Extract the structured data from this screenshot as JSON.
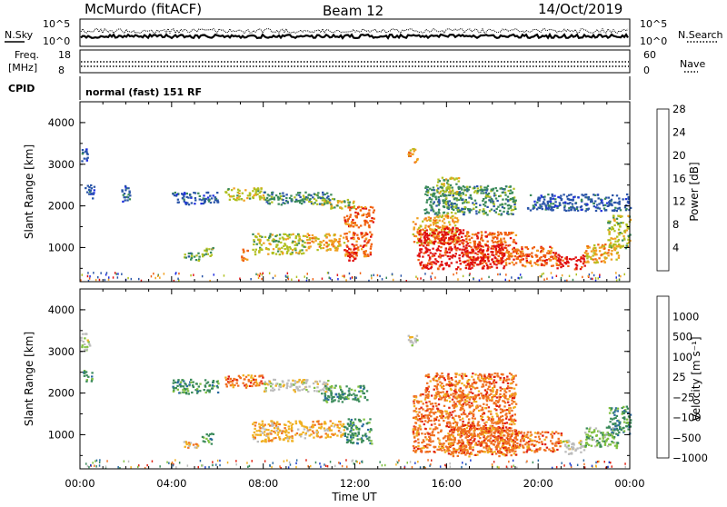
{
  "header": {
    "title_left": "McMurdo (fitACF)",
    "title_center": "Beam 12",
    "title_right": "14/Oct/2019",
    "nsky_label": "N.Sky",
    "nsearch_label": "N.Search",
    "freq_label_1": "Freq.",
    "freq_label_2": "[MHz]",
    "nave_label": "Nave",
    "cpid_label": "CPID",
    "cpid_value": "normal (fast) 151 RF",
    "nsky_ticks": [
      "10^5",
      "10^0"
    ],
    "nsearch_ticks": [
      "10^5",
      "10^0"
    ],
    "freq_ticks": [
      "18",
      "8"
    ],
    "nave_ticks": [
      "60",
      "0"
    ]
  },
  "chart_data": [
    {
      "type": "heatmap",
      "name": "power",
      "ylabel": "Slant Range [km]",
      "xlabel": "",
      "ylim": [
        180,
        4500
      ],
      "xlim": [
        0,
        24
      ],
      "y_ticks": [
        "1000",
        "2000",
        "3000",
        "4000"
      ],
      "colorbar": {
        "label": "Power [dB]",
        "ticks": [
          "4",
          "8",
          "12",
          "16",
          "20",
          "24",
          "28"
        ],
        "colors": [
          "#2030e0",
          "#2a55a8",
          "#3a8a5a",
          "#b0c020",
          "#f0a020",
          "#f06010",
          "#e01010"
        ]
      },
      "bands": [
        {
          "x": [
            0.0,
            0.3
          ],
          "y": [
            3050,
            3450
          ],
          "level": 1
        },
        {
          "x": [
            0.2,
            0.6
          ],
          "y": [
            2200,
            2550
          ],
          "level": 1
        },
        {
          "x": [
            1.8,
            2.2
          ],
          "y": [
            2100,
            2500
          ],
          "level": 1
        },
        {
          "x": [
            4.0,
            6.0
          ],
          "y": [
            2050,
            2350
          ],
          "level": 1
        },
        {
          "x": [
            4.5,
            5.2
          ],
          "y": [
            700,
            900
          ],
          "level": 2
        },
        {
          "x": [
            5.3,
            5.8
          ],
          "y": [
            800,
            1050
          ],
          "level": 3
        },
        {
          "x": [
            6.3,
            8.0
          ],
          "y": [
            2150,
            2450
          ],
          "level": 3
        },
        {
          "x": [
            8.0,
            11.0
          ],
          "y": [
            2050,
            2350
          ],
          "level": 2
        },
        {
          "x": [
            10.5,
            12.0
          ],
          "y": [
            1950,
            2200
          ],
          "level": 3
        },
        {
          "x": [
            11.5,
            12.8
          ],
          "y": [
            1500,
            2000
          ],
          "level": 5
        },
        {
          "x": [
            7.5,
            9.8
          ],
          "y": [
            850,
            1350
          ],
          "level": 3
        },
        {
          "x": [
            9.8,
            11.5
          ],
          "y": [
            950,
            1350
          ],
          "level": 4
        },
        {
          "x": [
            11.5,
            12.7
          ],
          "y": [
            800,
            1400
          ],
          "level": 5
        },
        {
          "x": [
            11.6,
            12.0
          ],
          "y": [
            700,
            1100
          ],
          "level": 6
        },
        {
          "x": [
            7.0,
            7.3
          ],
          "y": [
            700,
            1000
          ],
          "level": 5
        },
        {
          "x": [
            14.5,
            16.5
          ],
          "y": [
            1100,
            1800
          ],
          "level": 4
        },
        {
          "x": [
            14.7,
            16.8
          ],
          "y": [
            500,
            1500
          ],
          "level": 6
        },
        {
          "x": [
            16.8,
            19.0
          ],
          "y": [
            600,
            1400
          ],
          "level": 5
        },
        {
          "x": [
            16.8,
            18.5
          ],
          "y": [
            500,
            1100
          ],
          "level": 6
        },
        {
          "x": [
            19.0,
            20.8
          ],
          "y": [
            550,
            1050
          ],
          "level": 5
        },
        {
          "x": [
            20.8,
            22.0
          ],
          "y": [
            500,
            850
          ],
          "level": 6
        },
        {
          "x": [
            22.0,
            23.5
          ],
          "y": [
            650,
            1100
          ],
          "level": 4
        },
        {
          "x": [
            23.0,
            24.0
          ],
          "y": [
            1000,
            1800
          ],
          "level": 3
        },
        {
          "x": [
            15.0,
            19.0
          ],
          "y": [
            1800,
            2500
          ],
          "level": 2
        },
        {
          "x": [
            19.5,
            24.0
          ],
          "y": [
            1900,
            2300
          ],
          "level": 1
        },
        {
          "x": [
            14.3,
            14.7
          ],
          "y": [
            3050,
            3400
          ],
          "level": 4
        },
        {
          "x": [
            15.5,
            16.5
          ],
          "y": [
            2300,
            2700
          ],
          "level": 3
        }
      ]
    },
    {
      "type": "heatmap",
      "name": "velocity",
      "ylabel": "Slant Range [km]",
      "xlabel": "Time UT",
      "ylim": [
        180,
        4500
      ],
      "xlim": [
        0,
        24
      ],
      "y_ticks": [
        "1000",
        "2000",
        "3000",
        "4000"
      ],
      "x_ticks": [
        "00:00",
        "04:00",
        "08:00",
        "12:00",
        "16:00",
        "20:00",
        "00:00"
      ],
      "colorbar": {
        "label": "Velocity [m s⁻¹]",
        "ticks": [
          "1000",
          "500",
          "100",
          "25",
          "−25",
          "−100",
          "−500",
          "−1000"
        ],
        "colors": [
          "#2040d0",
          "#2a6aa0",
          "#3a8a5a",
          "#80c040",
          "#bcbcbc",
          "#f0b020",
          "#f07020",
          "#e02010"
        ]
      },
      "bands": [
        {
          "x": [
            0.0,
            0.4
          ],
          "y": [
            3050,
            3450
          ],
          "level": 4
        },
        {
          "x": [
            0.1,
            0.5
          ],
          "y": [
            2300,
            2600
          ],
          "level": 2
        },
        {
          "x": [
            4.0,
            6.0
          ],
          "y": [
            2000,
            2350
          ],
          "level": 2
        },
        {
          "x": [
            4.5,
            5.2
          ],
          "y": [
            700,
            900
          ],
          "level": 5
        },
        {
          "x": [
            5.3,
            5.8
          ],
          "y": [
            800,
            1050
          ],
          "level": 2
        },
        {
          "x": [
            6.3,
            8.0
          ],
          "y": [
            2150,
            2450
          ],
          "level": 6
        },
        {
          "x": [
            8.0,
            11.0
          ],
          "y": [
            2050,
            2350
          ],
          "level": 4
        },
        {
          "x": [
            10.5,
            12.5
          ],
          "y": [
            1800,
            2200
          ],
          "level": 2
        },
        {
          "x": [
            7.5,
            9.8
          ],
          "y": [
            850,
            1350
          ],
          "level": 5
        },
        {
          "x": [
            9.8,
            11.5
          ],
          "y": [
            950,
            1350
          ],
          "level": 5
        },
        {
          "x": [
            11.5,
            12.7
          ],
          "y": [
            800,
            1400
          ],
          "level": 2
        },
        {
          "x": [
            14.5,
            19.0
          ],
          "y": [
            600,
            2000
          ],
          "level": 6
        },
        {
          "x": [
            16.0,
            19.0
          ],
          "y": [
            500,
            1200
          ],
          "level": 6
        },
        {
          "x": [
            19.0,
            21.0
          ],
          "y": [
            600,
            1100
          ],
          "level": 6
        },
        {
          "x": [
            21.0,
            22.0
          ],
          "y": [
            550,
            900
          ],
          "level": 4
        },
        {
          "x": [
            22.0,
            23.5
          ],
          "y": [
            700,
            1200
          ],
          "level": 3
        },
        {
          "x": [
            23.0,
            24.0
          ],
          "y": [
            1000,
            1700
          ],
          "level": 2
        },
        {
          "x": [
            15.0,
            19.0
          ],
          "y": [
            1900,
            2500
          ],
          "level": 6
        },
        {
          "x": [
            14.3,
            14.7
          ],
          "y": [
            3050,
            3400
          ],
          "level": 4
        }
      ]
    }
  ]
}
